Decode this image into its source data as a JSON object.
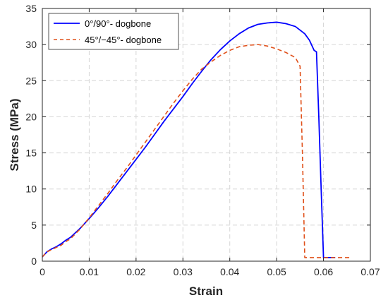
{
  "chart_data": {
    "type": "line",
    "xlabel": "Strain",
    "ylabel": "Stress (MPa)",
    "xlim": [
      0,
      0.07
    ],
    "ylim": [
      0,
      35
    ],
    "xticks": [
      0,
      0.01,
      0.02,
      0.03,
      0.04,
      0.05,
      0.06,
      0.07
    ],
    "xtick_labels": [
      "0",
      "0.01",
      "0.02",
      "0.03",
      "0.04",
      "0.05",
      "0.06",
      "0.07"
    ],
    "yticks": [
      0,
      5,
      10,
      15,
      20,
      25,
      30,
      35
    ],
    "ytick_labels": [
      "0",
      "5",
      "10",
      "15",
      "20",
      "25",
      "30",
      "35"
    ],
    "grid": true,
    "legend_position": "top-left",
    "series": [
      {
        "name": "0°/90°- dogbone",
        "color": "#0000ff",
        "line_style": "solid",
        "x": [
          0,
          0.001,
          0.002,
          0.003,
          0.004,
          0.005,
          0.006,
          0.008,
          0.01,
          0.012,
          0.014,
          0.016,
          0.018,
          0.02,
          0.022,
          0.024,
          0.026,
          0.028,
          0.03,
          0.032,
          0.034,
          0.036,
          0.038,
          0.04,
          0.042,
          0.044,
          0.046,
          0.048,
          0.05,
          0.052,
          0.054,
          0.056,
          0.057,
          0.058,
          0.0585,
          0.059,
          0.0595,
          0.06,
          0.0605,
          0.0615,
          0.0625
        ],
        "y": [
          0.6,
          1.3,
          1.7,
          2.0,
          2.4,
          2.9,
          3.3,
          4.5,
          5.9,
          7.4,
          9.0,
          10.7,
          12.4,
          14.1,
          15.8,
          17.6,
          19.4,
          21.1,
          22.8,
          24.6,
          26.3,
          27.9,
          29.3,
          30.5,
          31.5,
          32.3,
          32.8,
          33.0,
          33.1,
          32.9,
          32.5,
          31.5,
          30.6,
          29.2,
          29.0,
          20.0,
          10.0,
          0.5,
          0.5,
          0.5,
          0.5
        ]
      },
      {
        "name": "45°/−45°- dogbone",
        "color": "#e0501a",
        "line_style": "dashed",
        "x": [
          0,
          0.001,
          0.002,
          0.003,
          0.004,
          0.005,
          0.006,
          0.008,
          0.01,
          0.012,
          0.014,
          0.016,
          0.018,
          0.02,
          0.022,
          0.024,
          0.026,
          0.028,
          0.03,
          0.032,
          0.034,
          0.036,
          0.038,
          0.04,
          0.042,
          0.044,
          0.046,
          0.048,
          0.05,
          0.052,
          0.054,
          0.055,
          0.0555,
          0.056,
          0.0565,
          0.058,
          0.06,
          0.062,
          0.064,
          0.066
        ],
        "y": [
          0.6,
          1.3,
          1.6,
          1.9,
          2.2,
          2.7,
          3.1,
          4.4,
          6.0,
          7.7,
          9.4,
          11.2,
          12.9,
          14.7,
          16.5,
          18.3,
          20.1,
          21.9,
          23.6,
          25.2,
          26.6,
          27.6,
          28.5,
          29.2,
          29.7,
          29.9,
          30.0,
          29.8,
          29.4,
          28.9,
          28.2,
          27.0,
          15.0,
          0.5,
          0.5,
          0.5,
          0.5,
          0.5,
          0.5,
          0.5
        ]
      }
    ]
  }
}
